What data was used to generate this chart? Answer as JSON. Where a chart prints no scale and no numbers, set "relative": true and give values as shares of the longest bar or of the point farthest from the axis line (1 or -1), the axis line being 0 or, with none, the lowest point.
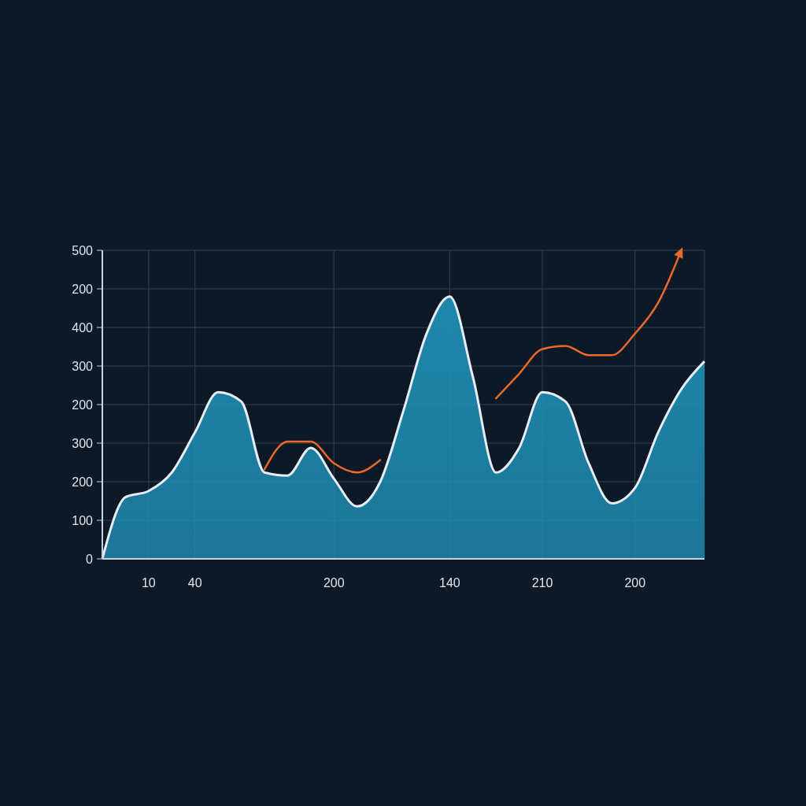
{
  "chart_data": {
    "type": "area",
    "relative": true,
    "categories": [
      null,
      null,
      "10",
      null,
      "40",
      null,
      null,
      null,
      null,
      null,
      "200",
      null,
      null,
      null,
      null,
      "140",
      null,
      null,
      null,
      "210",
      null,
      null,
      null,
      "200",
      null,
      null,
      null
    ],
    "annotations": [
      "500",
      "200",
      "400",
      "300",
      "200",
      "300",
      "200",
      "100",
      "0"
    ],
    "grid": true,
    "series": [
      {
        "color": "#1f8db3",
        "values": [
          0,
          0.2,
          0.22,
          0.28,
          0.41,
          0.54,
          0.51,
          0.28,
          0.27,
          0.36,
          0.26,
          0.17,
          0.25,
          0.48,
          0.73,
          0.85,
          0.59,
          0.28,
          0.36,
          0.54,
          0.51,
          0.31,
          0.18,
          0.23,
          0.41,
          0.55,
          0.64
        ]
      },
      {
        "type": "line",
        "color": "#e8692a",
        "values": [
          null,
          null,
          null,
          null,
          null,
          null,
          null,
          0.29,
          0.38,
          0.38,
          0.31,
          0.28,
          0.32,
          null,
          null,
          null,
          null,
          0.52,
          0.6,
          0.68,
          0.69,
          0.66,
          0.66,
          0.73,
          0.83,
          1.0,
          null
        ]
      }
    ]
  }
}
